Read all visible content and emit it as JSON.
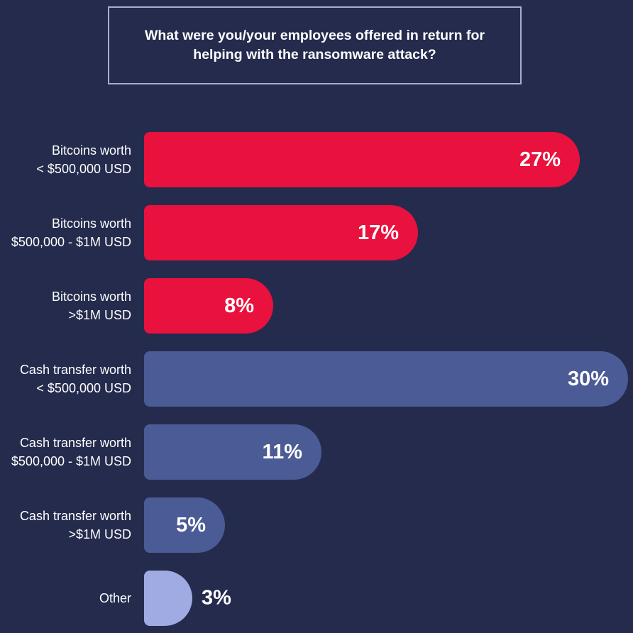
{
  "colors": {
    "background": "#242B4D",
    "title_border": "#A6AFD2",
    "text": "#FFFFFF"
  },
  "chart_data": {
    "type": "bar",
    "orientation": "horizontal",
    "title": "What were you/your employees offered in return for helping with the ransomware attack?",
    "unit": "%",
    "xlim": [
      0,
      30
    ],
    "grid": false,
    "legend": false,
    "categories": [
      "Bitcoins worth < $500,000 USD",
      "Bitcoins worth $500,000 - $1M USD",
      "Bitcoins worth >$1M USD",
      "Cash transfer worth < $500,000 USD",
      "Cash transfer worth $500,000 - $1M USD",
      "Cash transfer worth >$1M USD",
      "Other"
    ],
    "values": [
      27,
      17,
      8,
      30,
      11,
      5,
      3
    ],
    "bars": [
      {
        "label_lines": [
          "Bitcoins worth",
          "< $500,000 USD"
        ],
        "value": 27,
        "value_label": "27%",
        "color": "#E9113D",
        "value_inside": true
      },
      {
        "label_lines": [
          "Bitcoins worth",
          "$500,000 - $1M USD"
        ],
        "value": 17,
        "value_label": "17%",
        "color": "#E9113D",
        "value_inside": true
      },
      {
        "label_lines": [
          "Bitcoins worth",
          ">$1M USD"
        ],
        "value": 8,
        "value_label": "8%",
        "color": "#E9113D",
        "value_inside": true
      },
      {
        "label_lines": [
          "Cash transfer worth",
          "< $500,000 USD"
        ],
        "value": 30,
        "value_label": "30%",
        "color": "#4B5B95",
        "value_inside": true
      },
      {
        "label_lines": [
          "Cash transfer worth",
          "$500,000 - $1M USD"
        ],
        "value": 11,
        "value_label": "11%",
        "color": "#4B5B95",
        "value_inside": true
      },
      {
        "label_lines": [
          "Cash transfer worth",
          ">$1M USD"
        ],
        "value": 5,
        "value_label": "5%",
        "color": "#4B5B95",
        "value_inside": true
      },
      {
        "label_lines": [
          "Other"
        ],
        "value": 3,
        "value_label": "3%",
        "color": "#9FABE2",
        "value_inside": false
      }
    ]
  }
}
